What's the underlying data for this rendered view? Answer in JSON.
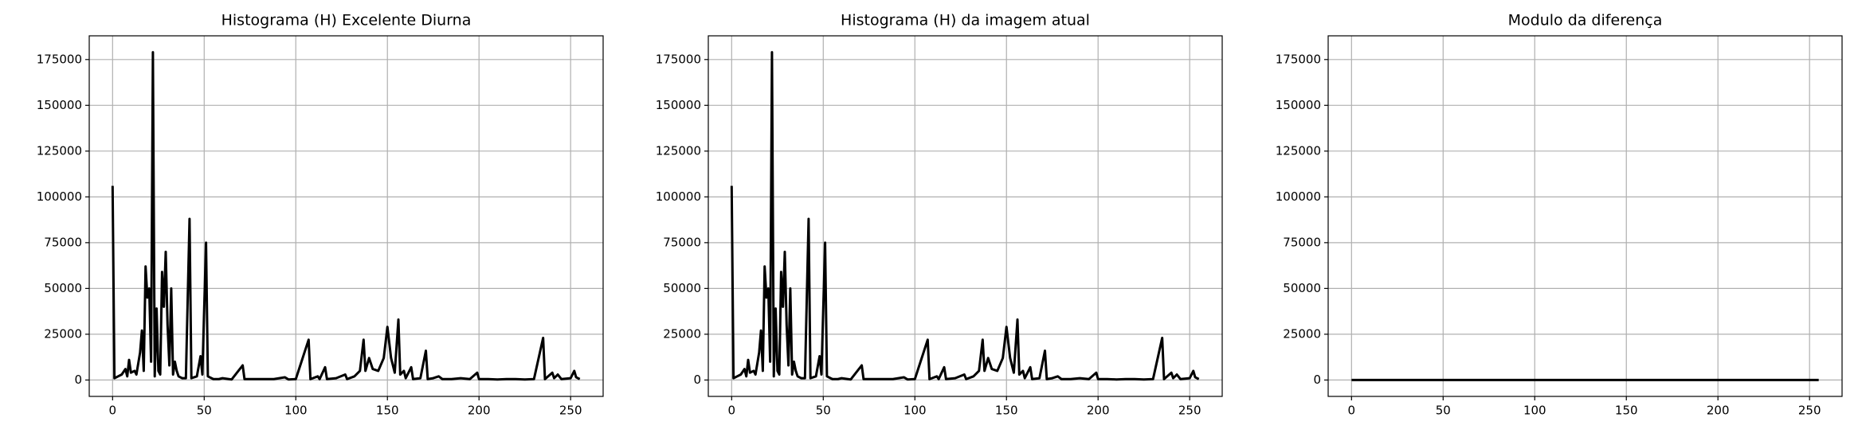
{
  "chart_data": [
    {
      "type": "line",
      "title": "Histograma (H) Excelente Diurna",
      "x": [
        0,
        1,
        3,
        5,
        7,
        8,
        9,
        10,
        12,
        13,
        15,
        16,
        17,
        18,
        19,
        20,
        21,
        22,
        23,
        24,
        25,
        26,
        27,
        28,
        29,
        30,
        31,
        32,
        33,
        34,
        35,
        36,
        38,
        40,
        42,
        43,
        46,
        48,
        49,
        51,
        52,
        55,
        58,
        60,
        65,
        71,
        72,
        80,
        88,
        94,
        96,
        100,
        107,
        108,
        112,
        113,
        116,
        117,
        122,
        127,
        128,
        132,
        135,
        137,
        138,
        140,
        142,
        145,
        148,
        150,
        152,
        154,
        156,
        157,
        159,
        160,
        163,
        164,
        168,
        171,
        172,
        175,
        178,
        180,
        185,
        190,
        195,
        199,
        200,
        205,
        210,
        215,
        220,
        225,
        230,
        235,
        236,
        240,
        241,
        243,
        245,
        250,
        252,
        253,
        255
      ],
      "values": [
        106000,
        1000,
        2000,
        3000,
        6000,
        2000,
        11000,
        4000,
        5000,
        3000,
        15000,
        27000,
        5000,
        62000,
        45000,
        50000,
        10000,
        179000,
        2000,
        39000,
        5000,
        3000,
        59000,
        40000,
        70000,
        30000,
        8000,
        50000,
        3000,
        10000,
        5000,
        2000,
        1000,
        1000,
        88000,
        1000,
        2000,
        13000,
        3000,
        75000,
        2000,
        500,
        500,
        1000,
        300,
        8000,
        500,
        500,
        500,
        1500,
        300,
        500,
        22000,
        500,
        2000,
        500,
        7000,
        500,
        1000,
        3000,
        500,
        2000,
        5000,
        22000,
        5000,
        12000,
        6000,
        5000,
        12000,
        29000,
        12000,
        4000,
        33000,
        3000,
        5000,
        1000,
        7000,
        500,
        1000,
        16000,
        500,
        1000,
        2000,
        500,
        500,
        1000,
        500,
        4000,
        500,
        500,
        300,
        500,
        500,
        300,
        500,
        23000,
        500,
        4000,
        1000,
        3000,
        500,
        1000,
        5000,
        1500,
        500
      ],
      "color": "#000000",
      "xlim": [
        -12.75,
        267.75
      ],
      "ylim": [
        -8950,
        187950
      ],
      "xticks": [
        0,
        50,
        100,
        150,
        200,
        250
      ],
      "yticks": [
        0,
        25000,
        50000,
        75000,
        100000,
        125000,
        150000,
        175000
      ],
      "grid": true
    },
    {
      "type": "line",
      "title": "Histograma (H) da imagem atual",
      "x": [
        0,
        1,
        3,
        5,
        7,
        8,
        9,
        10,
        12,
        13,
        15,
        16,
        17,
        18,
        19,
        20,
        21,
        22,
        23,
        24,
        25,
        26,
        27,
        28,
        29,
        30,
        31,
        32,
        33,
        34,
        35,
        36,
        38,
        40,
        42,
        43,
        46,
        48,
        49,
        51,
        52,
        55,
        58,
        60,
        65,
        71,
        72,
        80,
        88,
        94,
        96,
        100,
        107,
        108,
        112,
        113,
        116,
        117,
        122,
        127,
        128,
        132,
        135,
        137,
        138,
        140,
        142,
        145,
        148,
        150,
        152,
        154,
        156,
        157,
        159,
        160,
        163,
        164,
        168,
        171,
        172,
        175,
        178,
        180,
        185,
        190,
        195,
        199,
        200,
        205,
        210,
        215,
        220,
        225,
        230,
        235,
        236,
        240,
        241,
        243,
        245,
        250,
        252,
        253,
        255
      ],
      "values": [
        106000,
        1000,
        2000,
        3000,
        6000,
        2000,
        11000,
        4000,
        5000,
        3000,
        15000,
        27000,
        5000,
        62000,
        45000,
        50000,
        10000,
        179000,
        2000,
        39000,
        5000,
        3000,
        59000,
        40000,
        70000,
        30000,
        8000,
        50000,
        3000,
        10000,
        5000,
        2000,
        1000,
        1000,
        88000,
        1000,
        2000,
        13000,
        3000,
        75000,
        2000,
        500,
        500,
        1000,
        300,
        8000,
        500,
        500,
        500,
        1500,
        300,
        500,
        22000,
        500,
        2000,
        500,
        7000,
        500,
        1000,
        3000,
        500,
        2000,
        5000,
        22000,
        5000,
        12000,
        6000,
        5000,
        12000,
        29000,
        12000,
        4000,
        33000,
        3000,
        5000,
        1000,
        7000,
        500,
        1000,
        16000,
        500,
        1000,
        2000,
        500,
        500,
        1000,
        500,
        4000,
        500,
        500,
        300,
        500,
        500,
        300,
        500,
        23000,
        500,
        4000,
        1000,
        3000,
        500,
        1000,
        5000,
        1500,
        500
      ],
      "color": "#000000",
      "xlim": [
        -12.75,
        267.75
      ],
      "ylim": [
        -8950,
        187950
      ],
      "xticks": [
        0,
        50,
        100,
        150,
        200,
        250
      ],
      "yticks": [
        0,
        25000,
        50000,
        75000,
        100000,
        125000,
        150000,
        175000
      ],
      "grid": true
    },
    {
      "type": "line",
      "title": "Modulo da diferença",
      "x": [
        0,
        255
      ],
      "values": [
        0,
        0
      ],
      "color": "#000000",
      "xlim": [
        -12.75,
        267.75
      ],
      "ylim": [
        -8950,
        187950
      ],
      "xticks": [
        0,
        50,
        100,
        150,
        200,
        250
      ],
      "yticks": [
        0,
        25000,
        50000,
        75000,
        100000,
        125000,
        150000,
        175000
      ],
      "grid": true
    }
  ]
}
